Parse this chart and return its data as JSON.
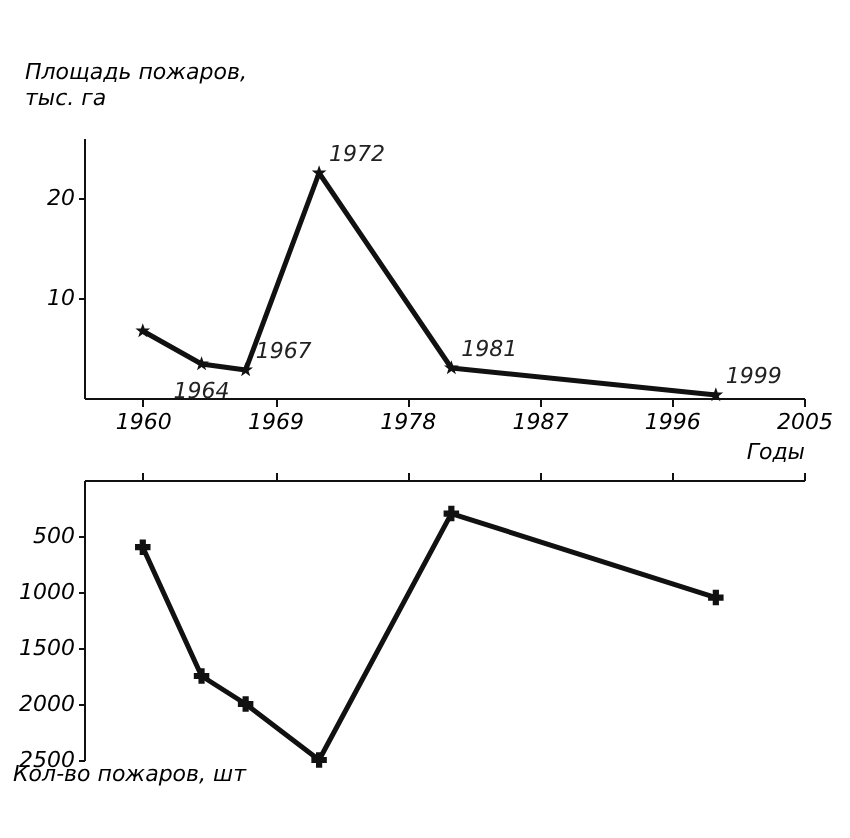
{
  "chart_data": [
    {
      "type": "line",
      "ylabel": "Площадь пожаров,\nтыс. га",
      "xlabel": "Годы",
      "x": [
        1960,
        1964,
        1967,
        1972,
        1981,
        1999
      ],
      "series": [
        {
          "color": "#111111",
          "values": [
            6.7,
            3.4,
            2.8,
            22.5,
            3.0,
            0.3
          ]
        }
      ],
      "xlim": [
        1956,
        2005
      ],
      "xticks": [
        1960,
        1969,
        1978,
        1987,
        1996,
        2005
      ],
      "ylim": [
        0,
        26
      ],
      "yticks": [
        10,
        20
      ],
      "marker": "star",
      "grid": false,
      "legend": false,
      "annotations": [
        {
          "text": "1964",
          "x": 1964,
          "y": 3.4
        },
        {
          "text": "1967",
          "x": 1967,
          "y": 2.8
        },
        {
          "text": "1972",
          "x": 1972,
          "y": 22.5
        },
        {
          "text": "1981",
          "x": 1981,
          "y": 3.0
        },
        {
          "text": "1999",
          "x": 1999,
          "y": 0.3
        }
      ]
    },
    {
      "type": "line",
      "ylabel": "Кол-во пожаров, шт",
      "x": [
        1960,
        1964,
        1967,
        1972,
        1981,
        1999
      ],
      "series": [
        {
          "color": "#111111",
          "values": [
            600,
            1750,
            2000,
            2500,
            300,
            1050
          ]
        }
      ],
      "xlim": [
        1956,
        2005
      ],
      "xticks": [
        1960,
        1969,
        1978,
        1987,
        1996,
        2005
      ],
      "ylim": [
        2500,
        0
      ],
      "yticks": [
        500,
        1000,
        1500,
        2000,
        2500
      ],
      "marker": "cross",
      "grid": false,
      "legend": false,
      "tick_labels": "y"
    }
  ]
}
